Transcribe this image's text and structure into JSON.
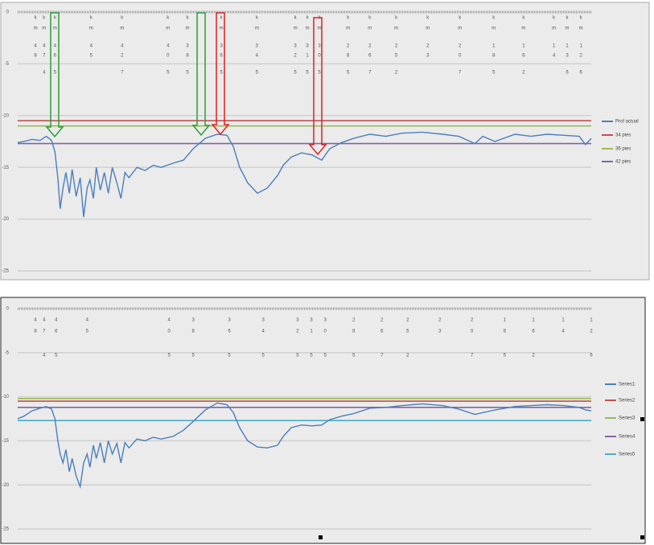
{
  "chart_data": [
    {
      "type": "line",
      "ylim": [
        -25,
        0
      ],
      "yticks": [
        0,
        -5,
        -10,
        -15,
        -20,
        -25
      ],
      "xlim": [
        0,
        100
      ],
      "grid": true,
      "series": [
        {
          "name": "Prof actual",
          "color": "#4a7ebb",
          "x": [
            0,
            1.1,
            2.5,
            3.9,
            5.0,
            5.9,
            6.5,
            7.0,
            7.4,
            7.9,
            8.4,
            9.0,
            9.5,
            10.2,
            10.9,
            11.5,
            12.1,
            12.6,
            13.2,
            13.7,
            14.4,
            15.1,
            15.8,
            16.5,
            17.3,
            18.0,
            18.7,
            19.4,
            20.8,
            22.2,
            23.6,
            25.0,
            27.1,
            28.9,
            30.6,
            32.7,
            34.8,
            36.5,
            37.6,
            38.7,
            40.1,
            41.8,
            43.5,
            45.3,
            46.3,
            47.7,
            49.5,
            51.3,
            53.0,
            54.4,
            56.5,
            58.6,
            61.4,
            64.2,
            67.0,
            70.5,
            74.1,
            76.9,
            79.7,
            81.1,
            83.2,
            86.7,
            89.5,
            92.3,
            95.2,
            97.9,
            99.0,
            100
          ],
          "values": [
            -12.6,
            -12.5,
            -12.3,
            -12.4,
            -12.0,
            -12.4,
            -13.5,
            -16.0,
            -19.0,
            -17.0,
            -15.5,
            -17.5,
            -15.2,
            -17.8,
            -16.0,
            -19.8,
            -17.0,
            -16.2,
            -18.0,
            -15.0,
            -17.2,
            -15.5,
            -17.5,
            -15.0,
            -16.5,
            -18.0,
            -15.5,
            -16.0,
            -15.0,
            -15.3,
            -14.8,
            -15.0,
            -14.6,
            -14.3,
            -13.2,
            -12.2,
            -11.8,
            -11.9,
            -13.0,
            -15.0,
            -16.5,
            -17.5,
            -17.0,
            -15.8,
            -14.8,
            -14.0,
            -13.6,
            -13.8,
            -14.3,
            -13.2,
            -12.6,
            -12.2,
            -11.8,
            -12.0,
            -11.7,
            -11.6,
            -11.8,
            -12.0,
            -12.7,
            -12.0,
            -12.5,
            -11.8,
            -12.0,
            -11.8,
            -11.9,
            -12.0,
            -12.8,
            -12.2
          ]
        },
        {
          "name": "34 pies",
          "color": "#c0504d",
          "x": [
            0,
            100
          ],
          "values": [
            -10.5,
            -10.5
          ]
        },
        {
          "name": "36 pies",
          "color": "#9bbb59",
          "x": [
            0,
            100
          ],
          "values": [
            -11,
            -11
          ]
        },
        {
          "name": "42 pies",
          "color": "#8064a2",
          "x": [
            0,
            100
          ],
          "values": [
            -12.7,
            -12.7
          ]
        }
      ],
      "markers": [
        {
          "x": 3.1,
          "lines": [
            "k",
            "m",
            "4",
            "8"
          ]
        },
        {
          "x": 4.6,
          "lines": [
            "k",
            "m",
            "4",
            "7",
            "4"
          ]
        },
        {
          "x": 6.5,
          "lines": [
            "k",
            "m",
            "4",
            "6",
            "5"
          ]
        },
        {
          "x": 12.8,
          "lines": [
            "k",
            "m",
            "4",
            "5"
          ]
        },
        {
          "x": 18.2,
          "lines": [
            "k",
            "m",
            "4",
            "2",
            "7"
          ]
        },
        {
          "x": 26.2,
          "lines": [
            "k",
            "m",
            "4",
            "0",
            "5"
          ]
        },
        {
          "x": 29.6,
          "lines": [
            "k",
            "m",
            "3",
            "8",
            "5"
          ]
        },
        {
          "x": 35.5,
          "lines": [
            "k",
            "m",
            "3",
            "6",
            "5"
          ]
        },
        {
          "x": 41.7,
          "lines": [
            "k",
            "m",
            "3",
            "4",
            "5"
          ]
        },
        {
          "x": 48.4,
          "lines": [
            "k",
            "m",
            "3",
            "2",
            "5"
          ]
        },
        {
          "x": 50.5,
          "lines": [
            "k",
            "m",
            "3",
            "1",
            "5"
          ]
        },
        {
          "x": 52.6,
          "lines": [
            "k",
            "m",
            "3",
            "0",
            "5"
          ]
        },
        {
          "x": 57.6,
          "lines": [
            "k",
            "m",
            "2",
            "8",
            "5"
          ]
        },
        {
          "x": 61.4,
          "lines": [
            "k",
            "m",
            "2",
            "6",
            "7"
          ]
        },
        {
          "x": 66.0,
          "lines": [
            "k",
            "m",
            "2",
            "5",
            "2"
          ]
        },
        {
          "x": 71.5,
          "lines": [
            "k",
            "m",
            "2",
            "3"
          ]
        },
        {
          "x": 77.1,
          "lines": [
            "k",
            "m",
            "2",
            "0",
            "7"
          ]
        },
        {
          "x": 83.0,
          "lines": [
            "k",
            "m",
            "1",
            "8",
            "5"
          ]
        },
        {
          "x": 88.2,
          "lines": [
            "k",
            "m",
            "1",
            "6",
            "2"
          ]
        },
        {
          "x": 93.5,
          "lines": [
            "k",
            "m",
            "1",
            "4"
          ]
        },
        {
          "x": 95.8,
          "lines": [
            "k",
            "m",
            "1",
            "3",
            "6"
          ]
        },
        {
          "x": 98.2,
          "lines": [
            "k",
            "m",
            "1",
            "2",
            "6"
          ]
        }
      ]
    },
    {
      "type": "line",
      "ylim": [
        -25,
        0
      ],
      "yticks": [
        0,
        -5,
        -10,
        -15,
        -20,
        -25
      ],
      "xlim": [
        0,
        100
      ],
      "grid": true,
      "series": [
        {
          "name": "Series1",
          "color": "#4a7ebb",
          "x": [
            0,
            1.1,
            2.5,
            3.9,
            5.0,
            5.9,
            6.5,
            7.0,
            7.4,
            7.9,
            8.4,
            9.0,
            9.5,
            10.2,
            10.9,
            11.5,
            12.1,
            12.6,
            13.2,
            13.7,
            14.4,
            15.1,
            15.8,
            16.5,
            17.3,
            18.0,
            18.7,
            19.4,
            20.8,
            22.2,
            23.6,
            25.0,
            27.1,
            28.9,
            30.6,
            32.7,
            34.8,
            36.5,
            37.6,
            38.7,
            40.1,
            41.8,
            43.5,
            45.3,
            46.3,
            47.7,
            49.5,
            51.3,
            53.0,
            54.4,
            56.5,
            58.6,
            61.4,
            64.2,
            67.0,
            70.5,
            74.1,
            76.9,
            79.7,
            81.1,
            83.2,
            86.7,
            89.5,
            92.3,
            95.2,
            97.9,
            99.0,
            100
          ],
          "values": [
            -12.5,
            -12.2,
            -11.6,
            -11.3,
            -11.1,
            -11.4,
            -12.5,
            -15.0,
            -16.5,
            -17.5,
            -16.0,
            -18.5,
            -17.0,
            -19.0,
            -20.2,
            -17.5,
            -16.5,
            -18.0,
            -15.5,
            -17.0,
            -15.2,
            -17.5,
            -15.0,
            -16.5,
            -15.3,
            -17.5,
            -15.2,
            -15.8,
            -14.8,
            -15.0,
            -14.6,
            -14.8,
            -14.5,
            -13.8,
            -12.8,
            -11.5,
            -10.7,
            -10.9,
            -11.8,
            -13.5,
            -15.0,
            -15.7,
            -15.8,
            -15.5,
            -14.5,
            -13.5,
            -13.2,
            -13.3,
            -13.2,
            -12.6,
            -12.2,
            -11.9,
            -11.3,
            -11.2,
            -11.0,
            -10.8,
            -11.0,
            -11.4,
            -12.0,
            -11.8,
            -11.5,
            -11.1,
            -11.0,
            -10.9,
            -11.0,
            -11.2,
            -11.5,
            -11.6
          ]
        },
        {
          "name": "Series2",
          "color": "#c0504d",
          "x": [
            0,
            100
          ],
          "values": [
            -10.5,
            -10.5
          ]
        },
        {
          "name": "Series3",
          "color": "#9bbb59",
          "x": [
            0,
            100
          ],
          "values": [
            -10.2,
            -10.2
          ]
        },
        {
          "name": "Series4",
          "color": "#8064a2",
          "x": [
            0,
            100
          ],
          "values": [
            -11.2,
            -11.2
          ]
        },
        {
          "name": "Series5",
          "color": "#4bacc6",
          "x": [
            0,
            100
          ],
          "values": [
            -12.7,
            -12.7
          ]
        }
      ],
      "markers": [
        {
          "x": 3.1,
          "lines": [
            "4",
            "8"
          ]
        },
        {
          "x": 4.6,
          "lines": [
            "4",
            "7",
            "4"
          ]
        },
        {
          "x": 6.7,
          "lines": [
            "4",
            "6",
            "5"
          ]
        },
        {
          "x": 12.1,
          "lines": [
            "4",
            "5"
          ]
        },
        {
          "x": 26.4,
          "lines": [
            "4",
            "0",
            "5"
          ]
        },
        {
          "x": 30.6,
          "lines": [
            "3",
            "8",
            "5"
          ]
        },
        {
          "x": 36.9,
          "lines": [
            "3",
            "6",
            "5"
          ]
        },
        {
          "x": 42.8,
          "lines": [
            "3",
            "4",
            "5"
          ]
        },
        {
          "x": 48.8,
          "lines": [
            "3",
            "2",
            "5"
          ]
        },
        {
          "x": 51.2,
          "lines": [
            "3",
            "1",
            "5"
          ]
        },
        {
          "x": 53.6,
          "lines": [
            "3",
            "0",
            "5"
          ]
        },
        {
          "x": 58.6,
          "lines": [
            "2",
            "8",
            "5"
          ]
        },
        {
          "x": 63.5,
          "lines": [
            "2",
            "6",
            "7"
          ]
        },
        {
          "x": 68.0,
          "lines": [
            "2",
            "5",
            "2"
          ]
        },
        {
          "x": 73.6,
          "lines": [
            "2",
            "3"
          ]
        },
        {
          "x": 79.2,
          "lines": [
            "2",
            "0",
            "7"
          ]
        },
        {
          "x": 84.9,
          "lines": [
            "1",
            "8",
            "5"
          ]
        },
        {
          "x": 89.9,
          "lines": [
            "1",
            "6",
            "2"
          ]
        },
        {
          "x": 95.1,
          "lines": [
            "1",
            "4"
          ]
        },
        {
          "x": 100,
          "lines": [
            "1",
            "2",
            "6"
          ]
        }
      ]
    }
  ]
}
